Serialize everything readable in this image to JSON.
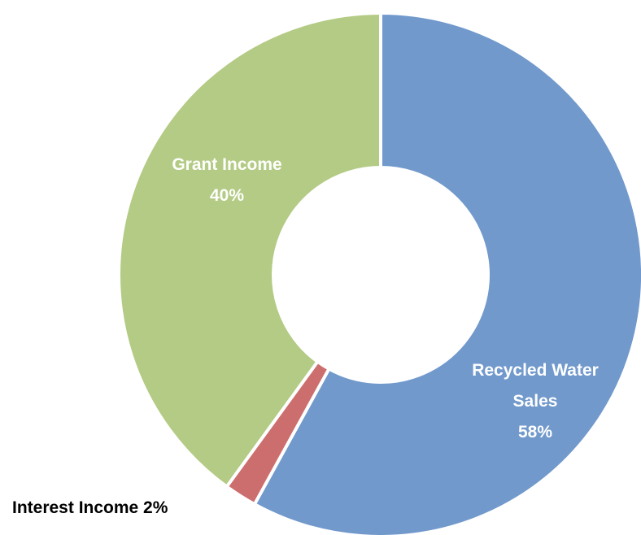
{
  "chart_data": {
    "type": "pie",
    "title": "",
    "categories": [
      "Recycled Water Sales",
      "Interest Income",
      "Grant Income"
    ],
    "values": [
      58,
      2,
      40
    ],
    "unit": "%",
    "colors": [
      "#7199cc",
      "#cd6e6e",
      "#b3cb84"
    ],
    "legend": "none",
    "labels": [
      {
        "lines": [
          "Recycled Water",
          "Sales",
          "58%"
        ],
        "color": "#ffffff",
        "placement": "inside"
      },
      {
        "lines": [
          "Interest Income 2%"
        ],
        "color": "#000000",
        "placement": "outside-bottom-left"
      },
      {
        "lines": [
          "Grant Income",
          "40%"
        ],
        "color": "#ffffff",
        "placement": "inside"
      }
    ]
  }
}
